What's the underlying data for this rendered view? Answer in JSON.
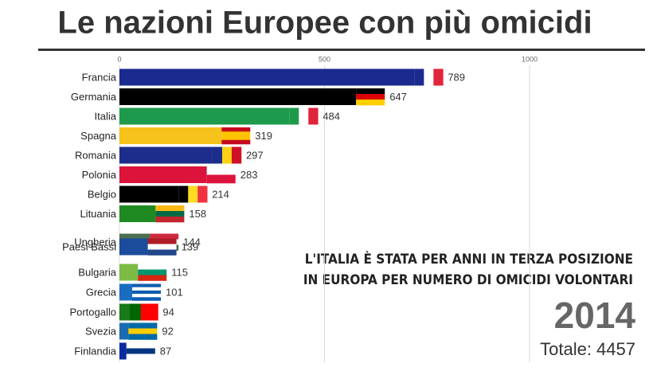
{
  "chart_data": {
    "type": "bar",
    "orientation": "horizontal",
    "title": "Le nazioni Europee con più omicidi",
    "categories": [
      "Francia",
      "Germania",
      "Italia",
      "Spagna",
      "Romania",
      "Polonia",
      "Belgio",
      "Lituania",
      "Ungheria",
      "Paesi Bassi",
      "Bulgaria",
      "Grecia",
      "Portogallo",
      "Svezia",
      "Finlandia"
    ],
    "values": [
      789,
      647,
      484,
      319,
      297,
      283,
      214,
      158,
      144,
      139,
      115,
      101,
      94,
      92,
      87
    ],
    "colors": [
      "#1b2a8e",
      "#000000",
      "#1e9a4c",
      "#f6c21c",
      "#1c2d8c",
      "#dc143c",
      "#000000",
      "#1f8a22",
      "#4b6f4f",
      "#1c4c9c",
      "#7dbb44",
      "#1a6cc0",
      "#1a7a1a",
      "#1a6cb0",
      "#0a2aa0"
    ],
    "flags": [
      [
        "v",
        "#1b2a8e",
        "#ffffff",
        "#e0253a"
      ],
      [
        "h",
        "#000000",
        "#dd0000",
        "#ffce00"
      ],
      [
        "v",
        "#1e9a4c",
        "#ffffff",
        "#e0253a"
      ],
      [
        "h",
        "#c60b1e",
        "#ffc400",
        "#ffc400",
        "#c60b1e"
      ],
      [
        "v",
        "#1c2d8c",
        "#fcd116",
        "#ce1126"
      ],
      [
        "h",
        "#ffffff",
        "#dc143c"
      ],
      [
        "v",
        "#000000",
        "#fdda24",
        "#ef3340"
      ],
      [
        "h",
        "#fdb913",
        "#006a44",
        "#c1272d"
      ],
      [
        "h",
        "#cd2a3e",
        "#ffffff",
        "#436f4d"
      ],
      [
        "h",
        "#ae1c28",
        "#ffffff",
        "#21468b"
      ],
      [
        "h",
        "#ffffff",
        "#00966e",
        "#d62612"
      ],
      [
        "h",
        "#0d5eaf",
        "#ffffff",
        "#0d5eaf",
        "#ffffff",
        "#0d5eaf"
      ],
      [
        "v",
        "#006600",
        "#006600",
        "#ff0000",
        "#ff0000",
        "#ff0000"
      ],
      [
        "h",
        "#006aa7",
        "#fecc00",
        "#006aa7"
      ],
      [
        "h",
        "#ffffff",
        "#003580",
        "#ffffff"
      ]
    ],
    "xlim": [
      0,
      1000
    ],
    "xticks": [
      0,
      500,
      1000
    ],
    "grid": true,
    "annotation": [
      "L'ITALIA È STATA PER ANNI IN TERZA POSIZIONE",
      "IN EUROPA PER NUMERO DI OMICIDI VOLONTARI"
    ],
    "year": "2014",
    "total": "Totale: 4457"
  }
}
